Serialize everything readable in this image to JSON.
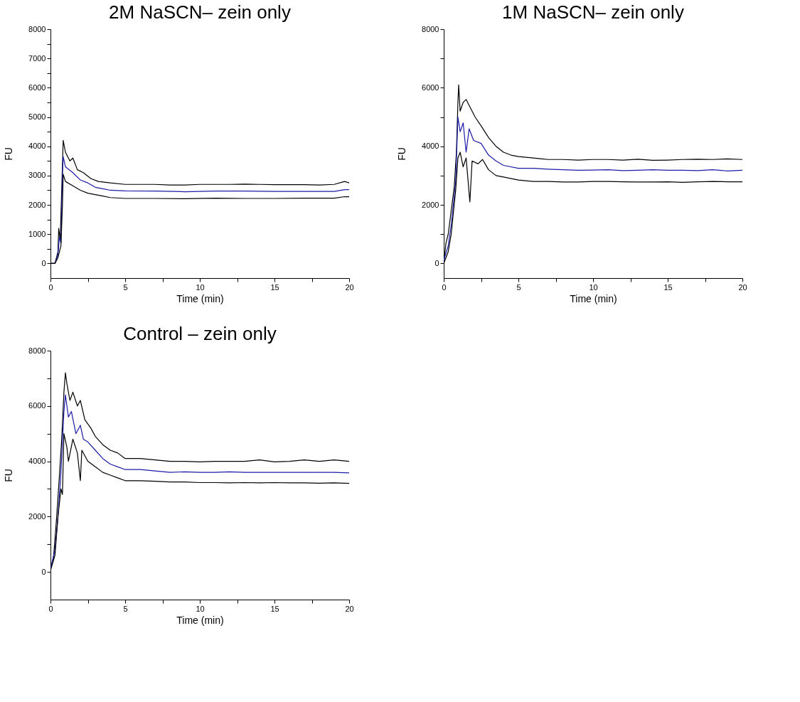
{
  "chart_data": [
    {
      "type": "line",
      "title": "2M NaSCN– zein only",
      "xlabel": "Time (min)",
      "ylabel": "FU",
      "xlim": [
        0,
        20
      ],
      "ylim": [
        -500,
        8000
      ],
      "xticks": [
        0,
        {
          "value": 2.5,
          "label": null
        },
        5,
        {
          "value": 7.5,
          "label": null
        },
        10,
        {
          "value": 12.5,
          "label": null
        },
        15,
        {
          "value": 17.5,
          "label": null
        },
        20
      ],
      "yticks": [
        0,
        {
          "value": 500,
          "label": null
        },
        1000,
        {
          "value": 1500,
          "label": null
        },
        2000,
        {
          "value": 2500,
          "label": null
        },
        3000,
        {
          "value": 3500,
          "label": null
        },
        4000,
        {
          "value": 4500,
          "label": null
        },
        5000,
        {
          "value": 5500,
          "label": null
        },
        6000,
        {
          "value": 6500,
          "label": null
        },
        7000,
        {
          "value": 7500,
          "label": null
        },
        8000
      ],
      "series": [
        {
          "color": "#000000",
          "x": [
            0,
            0.3,
            0.5,
            0.55,
            0.65,
            0.75,
            0.85,
            1.0,
            1.3,
            1.5,
            1.8,
            2.2,
            2.7,
            3.2,
            4,
            5,
            6,
            7,
            8,
            9,
            10,
            11,
            12,
            13,
            14,
            15,
            16,
            17,
            18,
            19,
            19.7,
            20
          ],
          "values": [
            0,
            0,
            400,
            1200,
            800,
            2500,
            4200,
            3800,
            3500,
            3600,
            3200,
            3100,
            2900,
            2800,
            2750,
            2700,
            2700,
            2700,
            2680,
            2680,
            2700,
            2700,
            2700,
            2710,
            2700,
            2690,
            2690,
            2690,
            2680,
            2700,
            2800,
            2750
          ]
        },
        {
          "color": "#1c1ca8",
          "x": [
            0,
            0.3,
            0.5,
            0.6,
            0.7,
            0.8,
            0.85,
            1.0,
            1.5,
            2,
            2.5,
            3,
            3.5,
            4,
            5,
            7,
            9,
            11,
            13,
            15,
            17,
            19,
            19.7,
            20
          ],
          "values": [
            0,
            0,
            300,
            900,
            700,
            3000,
            3650,
            3300,
            3100,
            2850,
            2750,
            2600,
            2550,
            2500,
            2480,
            2470,
            2450,
            2470,
            2470,
            2460,
            2460,
            2460,
            2520,
            2520
          ]
        },
        {
          "color": "#000000",
          "x": [
            0,
            0.3,
            0.5,
            0.7,
            0.8,
            0.85,
            1.0,
            1.5,
            2,
            2.5,
            3,
            3.5,
            4,
            5,
            7,
            9,
            11,
            13,
            15,
            17,
            19,
            19.7,
            20
          ],
          "values": [
            0,
            0,
            200,
            600,
            2000,
            3050,
            2800,
            2650,
            2500,
            2400,
            2350,
            2300,
            2250,
            2220,
            2220,
            2210,
            2230,
            2220,
            2220,
            2230,
            2230,
            2280,
            2280
          ]
        }
      ]
    },
    {
      "type": "line",
      "title": "1M NaSCN– zein only",
      "xlabel": "Time (min)",
      "ylabel": "FU",
      "xlim": [
        0,
        20
      ],
      "ylim": [
        -500,
        8000
      ],
      "xticks": [
        0,
        {
          "value": 2.5,
          "label": null
        },
        5,
        {
          "value": 7.5,
          "label": null
        },
        10,
        {
          "value": 12.5,
          "label": null
        },
        15,
        {
          "value": 17.5,
          "label": null
        },
        20
      ],
      "yticks": [
        0,
        {
          "value": 1000,
          "label": null
        },
        2000,
        {
          "value": 3000,
          "label": null
        },
        4000,
        {
          "value": 5000,
          "label": null
        },
        6000,
        {
          "value": 7000,
          "label": null
        },
        8000
      ],
      "series": [
        {
          "color": "#000000",
          "x": [
            0,
            0.15,
            0.3,
            0.5,
            0.7,
            0.85,
            0.95,
            1.0,
            1.1,
            1.3,
            1.5,
            1.8,
            2.1,
            2.5,
            3,
            3.5,
            4,
            4.5,
            5,
            6,
            7,
            8,
            9,
            10,
            11,
            12,
            13,
            14,
            15,
            16,
            17,
            18,
            19,
            20
          ],
          "values": [
            0,
            700,
            1000,
            1800,
            2600,
            3800,
            5500,
            6100,
            5200,
            5500,
            5600,
            5300,
            5000,
            4700,
            4300,
            4000,
            3800,
            3700,
            3650,
            3600,
            3550,
            3550,
            3530,
            3550,
            3550,
            3530,
            3560,
            3520,
            3530,
            3550,
            3560,
            3550,
            3570,
            3550
          ]
        },
        {
          "color": "#1c1ca8",
          "x": [
            0,
            0.3,
            0.5,
            0.8,
            0.95,
            1.1,
            1.3,
            1.5,
            1.7,
            2.0,
            2.5,
            3,
            3.5,
            4,
            5,
            6,
            7,
            8,
            9,
            10,
            11,
            12,
            13,
            14,
            15,
            16,
            17,
            18,
            19,
            20
          ],
          "values": [
            100,
            600,
            1300,
            2800,
            5000,
            4500,
            4800,
            3800,
            4600,
            4200,
            4100,
            3700,
            3500,
            3350,
            3250,
            3250,
            3220,
            3200,
            3180,
            3190,
            3200,
            3170,
            3180,
            3200,
            3180,
            3180,
            3170,
            3200,
            3160,
            3180
          ]
        },
        {
          "color": "#000000",
          "x": [
            0,
            0.3,
            0.5,
            0.8,
            0.95,
            1.1,
            1.3,
            1.5,
            1.75,
            1.9,
            2.3,
            2.6,
            3,
            3.5,
            4,
            5,
            6,
            7,
            8,
            9,
            10,
            11,
            12,
            13,
            14,
            15,
            16,
            17,
            18,
            19,
            20
          ],
          "values": [
            0,
            400,
            1000,
            2500,
            3600,
            3800,
            3300,
            3600,
            2100,
            3500,
            3400,
            3550,
            3200,
            3000,
            2950,
            2850,
            2800,
            2800,
            2780,
            2780,
            2800,
            2800,
            2790,
            2780,
            2780,
            2790,
            2770,
            2790,
            2800,
            2790,
            2790
          ]
        }
      ]
    },
    {
      "type": "line",
      "title": "Control – zein only",
      "xlabel": "Time (min)",
      "ylabel": "FU",
      "xlim": [
        0,
        20
      ],
      "ylim": [
        -1000,
        8000
      ],
      "xticks": [
        0,
        {
          "value": 2.5,
          "label": null
        },
        5,
        {
          "value": 7.5,
          "label": null
        },
        10,
        {
          "value": 12.5,
          "label": null
        },
        15,
        {
          "value": 17.5,
          "label": null
        },
        20
      ],
      "yticks": [
        0,
        {
          "value": 1000,
          "label": null
        },
        2000,
        {
          "value": 3000,
          "label": null
        },
        4000,
        {
          "value": 5000,
          "label": null
        },
        6000,
        {
          "value": 7000,
          "label": null
        },
        8000
      ],
      "series": [
        {
          "color": "#000000",
          "x": [
            0,
            0.2,
            0.4,
            0.6,
            0.75,
            0.9,
            1.0,
            1.1,
            1.3,
            1.5,
            1.8,
            2.0,
            2.3,
            2.7,
            3,
            3.5,
            4,
            4.5,
            5,
            6,
            7,
            8,
            9,
            10,
            11,
            12,
            13,
            14,
            15,
            16,
            17,
            18,
            19,
            20
          ],
          "values": [
            100,
            500,
            1900,
            3500,
            4800,
            6500,
            7200,
            6800,
            6200,
            6500,
            6000,
            6200,
            5500,
            5200,
            4900,
            4600,
            4400,
            4300,
            4100,
            4100,
            4050,
            4000,
            4000,
            3980,
            4000,
            4000,
            4000,
            4050,
            3980,
            4000,
            4050,
            4000,
            4050,
            4000
          ]
        },
        {
          "color": "#1c1ca8",
          "x": [
            0,
            0.3,
            0.5,
            0.7,
            0.9,
            1.0,
            1.2,
            1.4,
            1.7,
            2.0,
            2.2,
            2.5,
            3,
            3.5,
            4,
            4.5,
            5,
            6,
            7,
            8,
            9,
            10,
            11,
            12,
            13,
            14,
            15,
            16,
            17,
            18,
            19,
            20
          ],
          "values": [
            100,
            800,
            2000,
            3600,
            5800,
            6400,
            5600,
            5800,
            5000,
            5300,
            4800,
            4700,
            4400,
            4100,
            3900,
            3800,
            3700,
            3700,
            3650,
            3600,
            3620,
            3600,
            3600,
            3620,
            3600,
            3600,
            3600,
            3600,
            3600,
            3600,
            3600,
            3580
          ]
        },
        {
          "color": "#000000",
          "x": [
            0,
            0.3,
            0.5,
            0.7,
            0.8,
            0.9,
            1.1,
            1.2,
            1.5,
            1.8,
            2.0,
            2.1,
            2.5,
            3,
            3.5,
            4,
            4.5,
            5,
            6,
            7,
            8,
            9,
            10,
            11,
            12,
            13,
            14,
            15,
            16,
            17,
            18,
            19,
            20
          ],
          "values": [
            50,
            600,
            2000,
            3000,
            2800,
            5000,
            4500,
            4000,
            4800,
            4300,
            3300,
            4400,
            4000,
            3800,
            3600,
            3500,
            3400,
            3300,
            3300,
            3280,
            3250,
            3250,
            3230,
            3230,
            3220,
            3230,
            3220,
            3230,
            3220,
            3220,
            3210,
            3220,
            3200
          ]
        }
      ]
    }
  ]
}
